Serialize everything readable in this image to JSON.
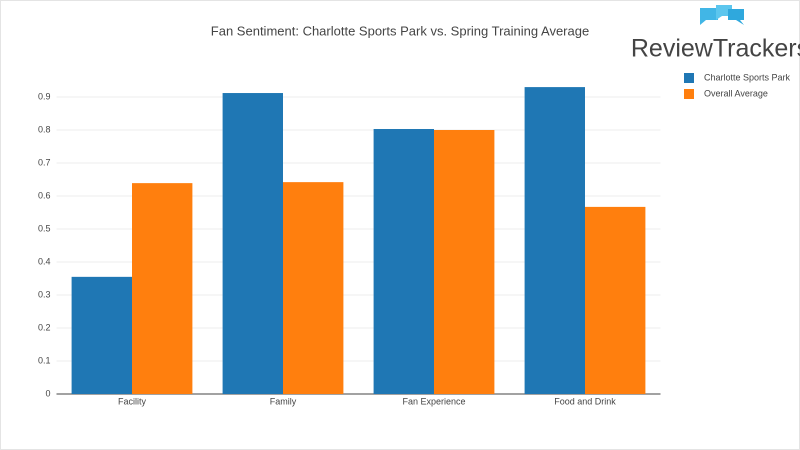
{
  "chart_data": {
    "type": "bar",
    "title": "Fan Sentiment: Charlotte Sports Park vs. Spring Training Average",
    "brand": "ReviewTrackers",
    "categories": [
      "Facility",
      "Family",
      "Fan Experience",
      "Food and Drink"
    ],
    "series": [
      {
        "name": "Charlotte Sports Park",
        "color": "#1f77b4",
        "values": [
          0.355,
          0.912,
          0.803,
          0.93
        ]
      },
      {
        "name": "Overall Average",
        "color": "#ff7f0e",
        "values": [
          0.639,
          0.642,
          0.8,
          0.567
        ]
      }
    ],
    "ylim": [
      0,
      1.0
    ],
    "yticks": [
      0,
      0.1,
      0.2,
      0.3,
      0.4,
      0.5,
      0.6,
      0.7,
      0.8,
      0.9
    ],
    "grid": true,
    "legend": "top-right"
  }
}
